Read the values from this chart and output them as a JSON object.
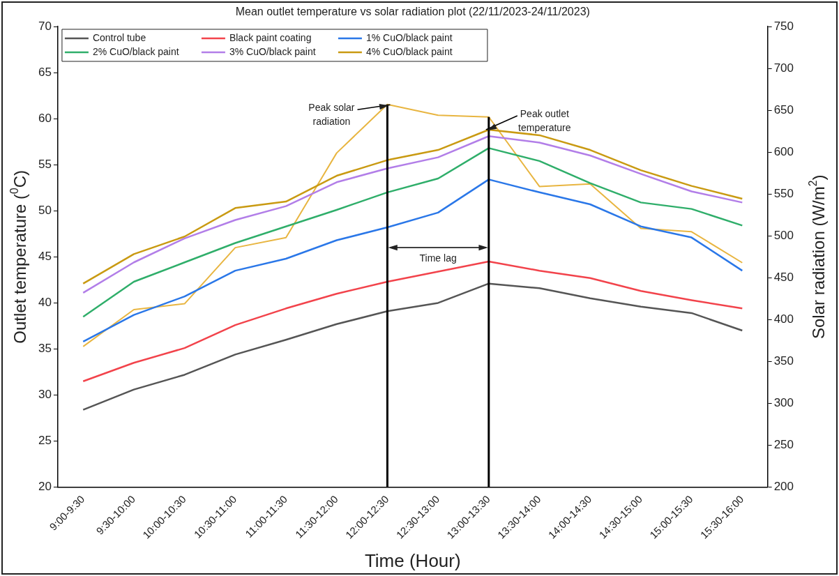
{
  "chart_data": {
    "type": "line",
    "title": "Mean outlet temperature vs solar radiation plot (22/11/2023-24/11/2023)",
    "xlabel": "Time (Hour)",
    "ylabel": "Outlet temperature ($^{0}$C)",
    "y2label": "Solar radiation (W/m$^{2}$)",
    "categories": [
      "9:00-9:30",
      "9:30-10:00",
      "10:00-10:30",
      "10:30-11:00",
      "11:00-11:30",
      "11:30-12:00",
      "12:00-12:30",
      "12:30-13:00",
      "13:00-13:30",
      "13:30-14:00",
      "14:00-14:30",
      "14:30-15:00",
      "15:00-15:30",
      "15:30-16:00"
    ],
    "series": [
      {
        "name": "Control tube",
        "color": "#555555",
        "values": [
          28.4,
          30.6,
          32.2,
          34.4,
          36.0,
          37.7,
          39.1,
          40.0,
          42.1,
          41.6,
          40.5,
          39.6,
          38.9,
          37.0
        ]
      },
      {
        "name": "Black paint coating",
        "color": "#f2434b",
        "values": [
          31.5,
          33.5,
          35.1,
          37.6,
          39.4,
          41.0,
          42.3,
          43.4,
          44.5,
          43.5,
          42.7,
          41.3,
          40.3,
          39.4
        ]
      },
      {
        "name": "1% CuO/black paint",
        "color": "#2a77e8",
        "values": [
          35.8,
          38.7,
          40.7,
          43.5,
          44.8,
          46.8,
          48.2,
          49.8,
          53.4,
          52.0,
          50.7,
          48.3,
          47.1,
          43.5
        ]
      },
      {
        "name": "2% CuO/black paint",
        "color": "#2fae6a",
        "values": [
          38.5,
          42.3,
          44.4,
          46.5,
          48.3,
          50.1,
          52.0,
          53.5,
          56.8,
          55.4,
          53.0,
          50.9,
          50.2,
          48.4
        ]
      },
      {
        "name": "3% CuO/black paint",
        "color": "#b27ee8",
        "values": [
          41.1,
          44.4,
          47.0,
          49.0,
          50.5,
          53.1,
          54.6,
          55.8,
          58.1,
          57.4,
          56.0,
          54.0,
          52.1,
          50.9
        ]
      },
      {
        "name": "4% CuO/black paint",
        "color": "#c99a12",
        "values": [
          42.1,
          45.3,
          47.2,
          50.3,
          51.0,
          53.8,
          55.5,
          56.6,
          58.8,
          58.2,
          56.6,
          54.4,
          52.7,
          51.3
        ]
      },
      {
        "color": "#e8b540",
        "axis": "y2",
        "values": [
          368,
          412,
          419,
          486,
          498,
          599,
          657,
          644,
          642,
          559,
          562,
          509,
          505,
          468
        ]
      }
    ],
    "ylim": [
      20,
      70
    ],
    "yticks": [
      20,
      25,
      30,
      35,
      40,
      45,
      50,
      55,
      60,
      65,
      70
    ],
    "y2lim": [
      200,
      750
    ],
    "y2ticks": [
      200,
      250,
      300,
      350,
      400,
      450,
      500,
      550,
      600,
      650,
      700,
      750
    ],
    "ref_lines": [
      {
        "axis": "x",
        "value": "12:00-12:30",
        "color": "#000000"
      },
      {
        "axis": "x",
        "value": "13:00-13:30",
        "color": "#000000"
      }
    ],
    "annotations": [
      {
        "text": "Peak solar radiation",
        "x": "12:00-12:30",
        "y": 61.5
      },
      {
        "text": "Peak outlet temperature",
        "x": "13:00-13:30",
        "y": 58.8
      },
      "Time lag"
    ],
    "legend": "top left",
    "grid": false,
    "marker": "none",
    "line_style": "solid"
  }
}
